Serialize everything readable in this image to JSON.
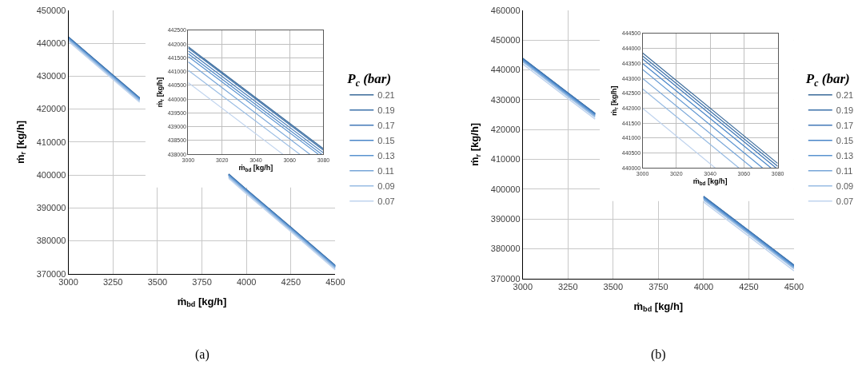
{
  "chart_data": [
    {
      "type": "line",
      "xlabel": "ṁ$_{bd}$ [kg/h]",
      "ylabel": "ṁ$_{r}$ [kg/h]",
      "legend_title": "P$_{c}$ (bar)",
      "legend": "right",
      "grid": true,
      "xlim": [
        3000,
        4500
      ],
      "xticks": [
        3000,
        3250,
        3500,
        3750,
        4000,
        4250,
        4500
      ],
      "ylim": [
        370000,
        450000
      ],
      "yticks": [
        370000,
        380000,
        390000,
        400000,
        410000,
        420000,
        430000,
        440000,
        450000
      ],
      "x": [
        3000,
        3250,
        3400,
        3650,
        3900,
        4000,
        4250,
        4500
      ],
      "annotations": [
        "(a)"
      ],
      "series": [
        {
          "name": "0.21",
          "color": "#3a6a9a",
          "values": [
            441900,
            430300,
            423400,
            null,
            400300,
            395600,
            384100,
            372500
          ]
        },
        {
          "name": "0.19",
          "color": "#3c71aa",
          "values": [
            441800,
            430200,
            423300,
            null,
            400200,
            395500,
            384000,
            372400
          ]
        },
        {
          "name": "0.17",
          "color": "#4279b8",
          "values": [
            441700,
            430100,
            423200,
            null,
            400100,
            395400,
            383900,
            372300
          ]
        },
        {
          "name": "0.15",
          "color": "#4a86c8",
          "values": [
            441600,
            430000,
            423100,
            null,
            400000,
            395300,
            383800,
            372200
          ]
        },
        {
          "name": "0.13",
          "color": "#5a93d0",
          "values": [
            441500,
            429900,
            423000,
            null,
            399900,
            395200,
            383700,
            372100
          ]
        },
        {
          "name": "0.11",
          "color": "#76a5d8",
          "values": [
            441300,
            429700,
            422800,
            null,
            399700,
            395000,
            383500,
            371900
          ]
        },
        {
          "name": "0.09",
          "color": "#98bce3",
          "values": [
            441000,
            429400,
            422500,
            null,
            399400,
            394700,
            383200,
            371600
          ]
        },
        {
          "name": "0.07",
          "color": "#c0d4ee",
          "values": [
            440600,
            429000,
            422100,
            null,
            399000,
            394300,
            382800,
            371200
          ]
        }
      ]
    },
    {
      "type": "line",
      "xlabel": "ṁ$_{bd}$ [kg/h]",
      "ylabel": "ṁ$_{r}$ [kg/h]",
      "grid": true,
      "xlim": [
        3000,
        3080
      ],
      "xticks": [
        3000,
        3020,
        3040,
        3060,
        3080
      ],
      "ylim": [
        438000,
        442500
      ],
      "yticks": [
        438000,
        438500,
        439000,
        439500,
        440000,
        440500,
        441000,
        441500,
        442000,
        442500
      ],
      "series": [
        {
          "color": "#3a6a9a",
          "x": [
            3000,
            3080
          ],
          "values": [
            441900,
            438200
          ]
        },
        {
          "color": "#3c71aa",
          "x": [
            3000,
            3080
          ],
          "values": [
            441850,
            438150
          ]
        },
        {
          "color": "#4279b8",
          "x": [
            3000,
            3080
          ],
          "values": [
            441750,
            438050
          ]
        },
        {
          "color": "#4a86c8",
          "x": [
            3000,
            3079
          ],
          "values": [
            441650,
            438000
          ]
        },
        {
          "color": "#5a93d0",
          "x": [
            3000,
            3077
          ],
          "values": [
            441550,
            438000
          ]
        },
        {
          "color": "#76a5d8",
          "x": [
            3000,
            3072
          ],
          "values": [
            441350,
            438000
          ]
        },
        {
          "color": "#98bce3",
          "x": [
            3000,
            3066
          ],
          "values": [
            441050,
            438000
          ]
        },
        {
          "color": "#c0d4ee",
          "x": [
            3000,
            3056
          ],
          "values": [
            440600,
            438000
          ]
        }
      ]
    },
    {
      "type": "line",
      "xlabel": "ṁ$_{bd}$ [kg/h]",
      "ylabel": "ṁ$_{r}$ [kg/h]",
      "legend_title": "P$_{c}$ (bar)",
      "legend": "right",
      "grid": true,
      "xlim": [
        3000,
        4500
      ],
      "xticks": [
        3000,
        3250,
        3500,
        3750,
        4000,
        4250,
        4500
      ],
      "ylim": [
        370000,
        460000
      ],
      "yticks": [
        370000,
        380000,
        390000,
        400000,
        410000,
        420000,
        430000,
        440000,
        450000,
        460000
      ],
      "x": [
        3000,
        3250,
        3400,
        3700,
        4000,
        4250,
        4500
      ],
      "annotations": [
        "(b)"
      ],
      "series": [
        {
          "name": "0.21",
          "color": "#3a6a9a",
          "values": [
            443900,
            432300,
            425400,
            null,
            397600,
            386100,
            374500
          ]
        },
        {
          "name": "0.19",
          "color": "#3c71aa",
          "values": [
            443800,
            432200,
            425300,
            null,
            397500,
            386000,
            374400
          ]
        },
        {
          "name": "0.17",
          "color": "#4279b8",
          "values": [
            443700,
            432100,
            425200,
            null,
            397400,
            385900,
            374300
          ]
        },
        {
          "name": "0.15",
          "color": "#4a86c8",
          "values": [
            443500,
            431900,
            425000,
            null,
            397200,
            385700,
            374100
          ]
        },
        {
          "name": "0.13",
          "color": "#5a93d0",
          "values": [
            443300,
            431700,
            424800,
            null,
            397000,
            385500,
            373900
          ]
        },
        {
          "name": "0.11",
          "color": "#76a5d8",
          "values": [
            443000,
            431400,
            424500,
            null,
            396700,
            385200,
            373600
          ]
        },
        {
          "name": "0.09",
          "color": "#98bce3",
          "values": [
            442700,
            431100,
            424200,
            null,
            396400,
            384900,
            373300
          ]
        },
        {
          "name": "0.07",
          "color": "#c0d4ee",
          "values": [
            442000,
            430400,
            423500,
            null,
            395700,
            384200,
            372600
          ]
        }
      ]
    },
    {
      "type": "line",
      "xlabel": "ṁ$_{bd}$ [kg/h]",
      "ylabel": "ṁ$_{r}$ [kg/h]",
      "grid": true,
      "xlim": [
        3000,
        3080
      ],
      "xticks": [
        3000,
        3020,
        3040,
        3060,
        3080
      ],
      "ylim": [
        440000,
        444500
      ],
      "yticks": [
        440000,
        440500,
        441000,
        441500,
        442000,
        442500,
        443000,
        443500,
        444000,
        444500
      ],
      "series": [
        {
          "color": "#3a6a9a",
          "x": [
            3000,
            3080
          ],
          "values": [
            443850,
            440150
          ]
        },
        {
          "color": "#3c71aa",
          "x": [
            3000,
            3080
          ],
          "values": [
            443750,
            440050
          ]
        },
        {
          "color": "#4279b8",
          "x": [
            3000,
            3079
          ],
          "values": [
            443650,
            440000
          ]
        },
        {
          "color": "#4a86c8",
          "x": [
            3000,
            3076
          ],
          "values": [
            443500,
            440000
          ]
        },
        {
          "color": "#5a93d0",
          "x": [
            3000,
            3071
          ],
          "values": [
            443300,
            440000
          ]
        },
        {
          "color": "#76a5d8",
          "x": [
            3000,
            3065
          ],
          "values": [
            443000,
            440000
          ]
        },
        {
          "color": "#98bce3",
          "x": [
            3000,
            3057
          ],
          "values": [
            442650,
            440000
          ]
        },
        {
          "color": "#c0d4ee",
          "x": [
            3000,
            3043
          ],
          "values": [
            442000,
            440000
          ]
        }
      ]
    }
  ]
}
